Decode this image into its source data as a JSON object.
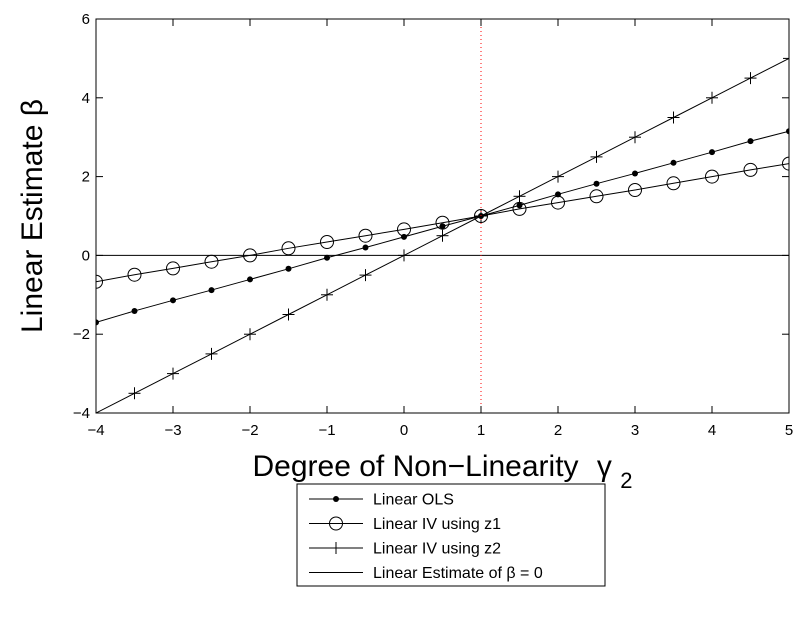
{
  "chart_data": {
    "type": "line",
    "xlabel": "Degree of Non−Linearity",
    "xlabel_symbol": "γ",
    "xlabel_subscript": "2",
    "ylabel": "Linear Estimate β",
    "xlim": [
      -4,
      5
    ],
    "ylim": [
      -4,
      6
    ],
    "xticks": [
      -4,
      -3,
      -2,
      -1,
      0,
      1,
      2,
      3,
      4,
      5
    ],
    "yticks": [
      -4,
      -2,
      0,
      2,
      4,
      6
    ],
    "xtick_labels": [
      "−4",
      "−3",
      "−2",
      "−1",
      "0",
      "1",
      "2",
      "3",
      "4",
      "5"
    ],
    "ytick_labels": [
      "−4",
      "−2",
      "0",
      "2",
      "4",
      "6"
    ],
    "grid": false,
    "legend_position": "below",
    "vline": {
      "x": 1,
      "color": "#ff0000",
      "style": "dotted"
    },
    "x": [
      -4,
      -3.5,
      -3,
      -2.5,
      -2,
      -1.5,
      -1,
      -0.5,
      0,
      0.5,
      1,
      1.5,
      2,
      2.5,
      3,
      3.5,
      4,
      4.5,
      5
    ],
    "series": [
      {
        "name": "Linear OLS",
        "marker": "dot",
        "values": [
          -1.7,
          -1.41,
          -1.14,
          -0.88,
          -0.61,
          -0.34,
          -0.06,
          0.2,
          0.47,
          0.74,
          1.0,
          1.27,
          1.55,
          1.82,
          2.08,
          2.35,
          2.62,
          2.9,
          3.15
        ]
      },
      {
        "name": "Linear IV using z1",
        "marker": "circle",
        "values": [
          -0.67,
          -0.49,
          -0.33,
          -0.16,
          0.0,
          0.18,
          0.34,
          0.5,
          0.66,
          0.83,
          1.0,
          1.18,
          1.34,
          1.5,
          1.66,
          1.83,
          2.0,
          2.17,
          2.33
        ]
      },
      {
        "name": "Linear IV using z2",
        "marker": "plus",
        "values": [
          -4.0,
          -3.5,
          -3.0,
          -2.5,
          -2.0,
          -1.5,
          -1.0,
          -0.5,
          0.0,
          0.5,
          1.0,
          1.5,
          2.0,
          2.5,
          3.0,
          3.5,
          4.0,
          4.5,
          5.0
        ]
      },
      {
        "name": "Linear Estimate of β = 0",
        "marker": "none",
        "values": [
          0,
          0,
          0,
          0,
          0,
          0,
          0,
          0,
          0,
          0,
          0,
          0,
          0,
          0,
          0,
          0,
          0,
          0,
          0
        ]
      }
    ]
  }
}
